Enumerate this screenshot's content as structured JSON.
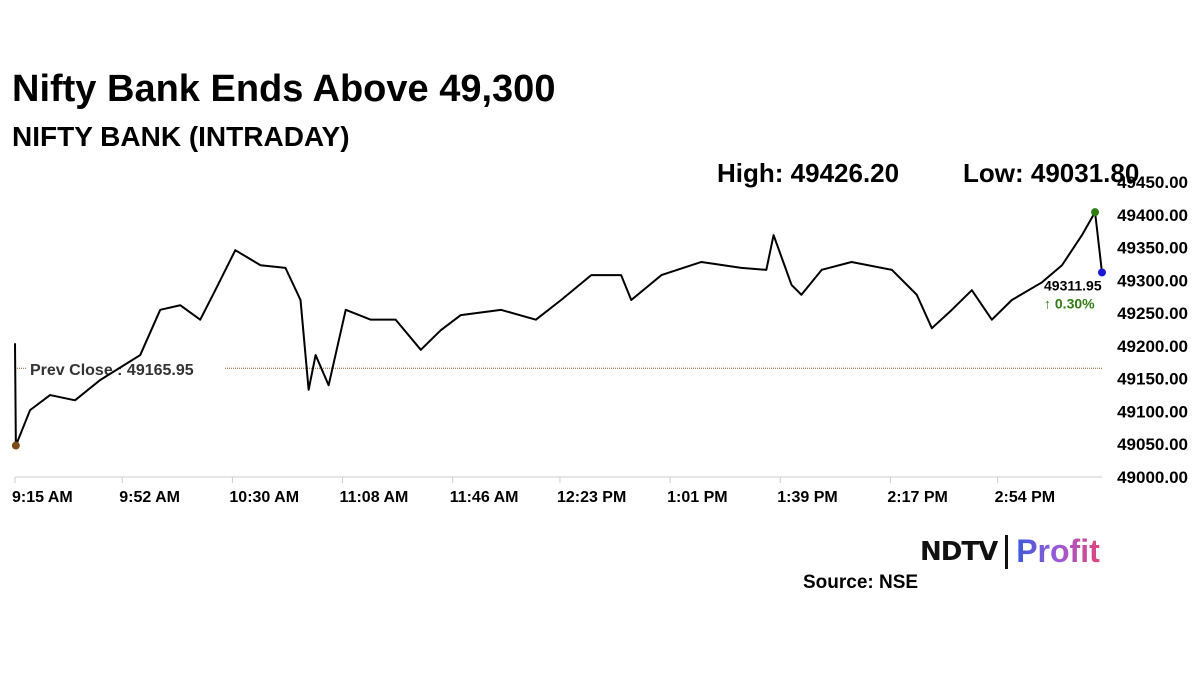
{
  "header": {
    "title": "Nifty Bank Ends Above 49,300",
    "subtitle": "NIFTY BANK (INTRADAY)",
    "high": "High: 49426.20",
    "low": "Low: 49031.80"
  },
  "footer": {
    "source": "Source: NSE",
    "logo_left": "NDTV",
    "logo_right": "Profit"
  },
  "colors": {
    "line": "#000000",
    "prev_close": "#8B5A2B",
    "high_dot": "#2e7d12",
    "low_dot": "#7a4a12",
    "close_dot": "#1a1ad6",
    "change": "#2e7d12"
  },
  "chart_data": {
    "type": "line",
    "title": "NIFTY BANK (INTRADAY)",
    "xlabel": "",
    "ylabel": "",
    "x_unit": "minutes since 9:15 AM",
    "xlim": [
      0,
      375
    ],
    "ylim": [
      49000,
      49450
    ],
    "yticks": [
      "49000.00",
      "49050.00",
      "49100.00",
      "49150.00",
      "49200.00",
      "49250.00",
      "49300.00",
      "49350.00",
      "49400.00",
      "49450.00"
    ],
    "xticks": [
      {
        "t": 0,
        "label": "9:15 AM"
      },
      {
        "t": 37,
        "label": "9:52 AM"
      },
      {
        "t": 75,
        "label": "10:30 AM"
      },
      {
        "t": 113,
        "label": "11:08 AM"
      },
      {
        "t": 151,
        "label": "11:46 AM"
      },
      {
        "t": 188,
        "label": "12:23 PM"
      },
      {
        "t": 226,
        "label": "1:01 PM"
      },
      {
        "t": 264,
        "label": "1:39 PM"
      },
      {
        "t": 302,
        "label": "2:17 PM"
      },
      {
        "t": 339,
        "label": "2:54 PM"
      }
    ],
    "prev_close": {
      "value": 49165.95,
      "label": "Prev Close : 49165.95"
    },
    "last": {
      "value_label": "49311.95",
      "change_label": "↑ 0.30%"
    },
    "series": [
      {
        "name": "NIFTY BANK",
        "points": [
          [
            0,
            49204
          ],
          [
            0.3,
            49048
          ],
          [
            5.2,
            49102
          ],
          [
            12.1,
            49125
          ],
          [
            20.7,
            49117
          ],
          [
            29.4,
            49148
          ],
          [
            43.2,
            49186
          ],
          [
            50.1,
            49255
          ],
          [
            57,
            49262
          ],
          [
            63.9,
            49240
          ],
          [
            69.1,
            49285
          ],
          [
            76,
            49346
          ],
          [
            84.7,
            49323
          ],
          [
            93.3,
            49319
          ],
          [
            98.5,
            49270
          ],
          [
            101.3,
            49133
          ],
          [
            103.7,
            49186
          ],
          [
            108.2,
            49140
          ],
          [
            114.1,
            49255
          ],
          [
            122.7,
            49240
          ],
          [
            131.3,
            49240
          ],
          [
            140,
            49194
          ],
          [
            146.9,
            49224
          ],
          [
            153.8,
            49247
          ],
          [
            167.6,
            49255
          ],
          [
            179.7,
            49240
          ],
          [
            188.4,
            49270
          ],
          [
            198.8,
            49308
          ],
          [
            209.1,
            49308
          ],
          [
            212.6,
            49270
          ],
          [
            223,
            49308
          ],
          [
            236.8,
            49328
          ],
          [
            250.6,
            49319
          ],
          [
            259.2,
            49316
          ],
          [
            261.7,
            49369
          ],
          [
            267.9,
            49293
          ],
          [
            271.3,
            49278
          ],
          [
            278.3,
            49316
          ],
          [
            288.6,
            49328
          ],
          [
            302.5,
            49316
          ],
          [
            311.1,
            49278
          ],
          [
            316.3,
            49227
          ],
          [
            323.2,
            49255
          ],
          [
            330.1,
            49285
          ],
          [
            337,
            49240
          ],
          [
            343.9,
            49270
          ],
          [
            354.3,
            49297
          ],
          [
            361.2,
            49323
          ],
          [
            368.1,
            49369
          ],
          [
            372.6,
            49404
          ],
          [
            375,
            49312
          ]
        ]
      }
    ]
  }
}
